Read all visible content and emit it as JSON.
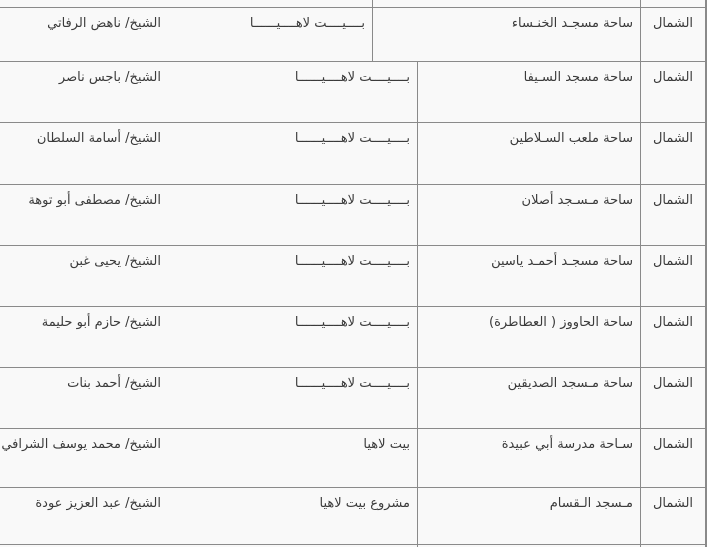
{
  "colors": {
    "border": "#8a8a8a",
    "background": "#f9f9f9",
    "text": "#3b3b3b"
  },
  "table": {
    "direction": "rtl",
    "columns": [
      {
        "key": "region",
        "name": "region-column"
      },
      {
        "key": "location",
        "name": "location-column"
      },
      {
        "key": "area",
        "name": "area-column"
      },
      {
        "key": "supervisor",
        "name": "supervisor-column"
      }
    ],
    "rows": [
      {
        "region": "الشمال",
        "location": "ساحة مسجـد الخنـساء",
        "area": "بــــيــــت لاهــــيــــــا",
        "supervisor": "الشيخ/ ناهض الرفاتي"
      },
      {
        "region": "الشمال",
        "location": "ساحة مسجد السـيفا",
        "area": "بــــيــــت لاهــــيــــــا",
        "supervisor": "الشيخ/ باجس ناصر"
      },
      {
        "region": "الشمال",
        "location": "ساحة ملعب السـلاطين",
        "area": "بــــيــــت لاهــــيــــــا",
        "supervisor": "الشيخ/ أسامة السلطان"
      },
      {
        "region": "الشمال",
        "location": "ساحة مـسـجد أصلان",
        "area": "بــــيــــت لاهــــيــــــا",
        "supervisor": "الشيخ/ مصطفى أبو توهة"
      },
      {
        "region": "الشمال",
        "location": "ساحة مسجـد أحمـد ياسين",
        "area": "بــــيــــت لاهــــيــــــا",
        "supervisor": "الشيخ/ يحيى غبن"
      },
      {
        "region": "الشمال",
        "location": "ساحة الحاووز ( العطاطرة)",
        "area": "بــــيــــت لاهــــيــــــا",
        "supervisor": "الشيخ/ حازم أبو حليمة"
      },
      {
        "region": "الشمال",
        "location": "ساحة مـسجد الصديقين",
        "area": "بــــيــــت لاهــــيــــــا",
        "supervisor": "الشيخ/ أحمد بنات"
      },
      {
        "region": "الشمال",
        "location": "سـاحة مدرسة أبي عبيدة",
        "area": "بيت لاهيا",
        "supervisor": "الشيخ/ محمد يوسف الشرافي"
      },
      {
        "region": "الشمال",
        "location": "مـسجد الـقسام",
        "area": "مشروع بيت لاهيا",
        "supervisor": "الشيخ/ عبد العزيز عودة"
      }
    ]
  }
}
